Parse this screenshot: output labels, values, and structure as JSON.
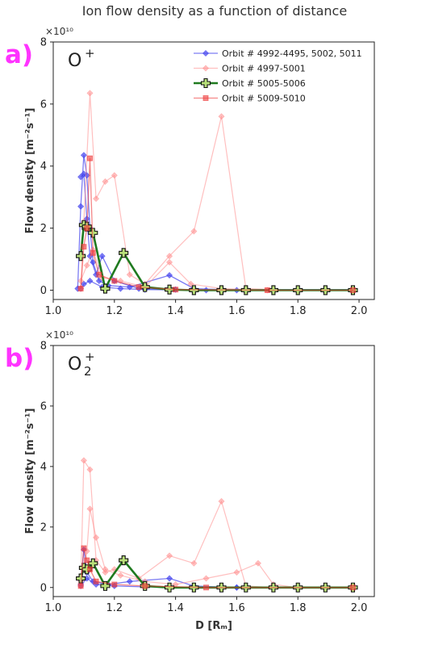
{
  "title": "Ion flow density as a function of distance",
  "chart_data": [
    {
      "type": "line",
      "panel_label": "a)",
      "ion_label": "O",
      "ion_sup": "+",
      "ion_sub": "",
      "xlabel": "",
      "ylabel": "Flow density [m⁻²s⁻¹]",
      "ymult": "×10¹⁰",
      "xlim": [
        1.0,
        2.05
      ],
      "ylim": [
        -0.3,
        8
      ],
      "xticks": [
        1.0,
        1.2,
        1.4,
        1.6,
        1.8,
        2.0
      ],
      "xticklabels": [
        "1.0",
        "1.2",
        "1.4",
        "1.6",
        "1.8",
        "2.0"
      ],
      "yticks": [
        0,
        2,
        4,
        6,
        8
      ],
      "yticklabels": [
        "0",
        "2",
        "4",
        "6",
        "8"
      ],
      "legend_position": "top-right",
      "series": [
        {
          "name": "Orbit # 4992-4495, 5002, 5011",
          "color": "#4444ee",
          "opacity": 0.7,
          "marker": "diamond",
          "width": 1.3,
          "lines": [
            [
              [
                1.08,
                0.05
              ],
              [
                1.09,
                2.7
              ],
              [
                1.1,
                4.35
              ],
              [
                1.11,
                3.7
              ],
              [
                1.12,
                2.0
              ],
              [
                1.13,
                0.9
              ],
              [
                1.15,
                0.3
              ],
              [
                1.18,
                0.15
              ],
              [
                1.25,
                0.1
              ],
              [
                1.38,
                0.48
              ],
              [
                1.46,
                0.05
              ],
              [
                1.55,
                0.02
              ],
              [
                1.72,
                0.02
              ],
              [
                1.98,
                0.02
              ]
            ],
            [
              [
                1.09,
                3.65
              ],
              [
                1.1,
                3.75
              ],
              [
                1.11,
                2.3
              ],
              [
                1.12,
                1.1
              ],
              [
                1.14,
                0.5
              ],
              [
                1.16,
                1.1
              ],
              [
                1.2,
                0.3
              ],
              [
                1.28,
                0.05
              ],
              [
                1.4,
                0.02
              ],
              [
                1.6,
                0.0
              ],
              [
                1.98,
                0.0
              ]
            ],
            [
              [
                1.09,
                0.05
              ],
              [
                1.1,
                0.2
              ],
              [
                1.12,
                0.3
              ],
              [
                1.16,
                0.1
              ],
              [
                1.22,
                0.05
              ],
              [
                1.3,
                0.02
              ],
              [
                1.5,
                0.0
              ],
              [
                1.8,
                0.0
              ],
              [
                1.98,
                0.0
              ]
            ]
          ]
        },
        {
          "name": "Orbit # 4997-5001",
          "color": "#ff8a8a",
          "opacity": 0.55,
          "marker": "diamond",
          "width": 1.2,
          "lines": [
            [
              [
                1.09,
                0.05
              ],
              [
                1.1,
                2.2
              ],
              [
                1.12,
                6.35
              ],
              [
                1.14,
                2.95
              ],
              [
                1.17,
                3.5
              ],
              [
                1.2,
                3.7
              ],
              [
                1.25,
                0.5
              ],
              [
                1.3,
                0.2
              ],
              [
                1.38,
                1.1
              ],
              [
                1.46,
                1.9
              ],
              [
                1.55,
                5.6
              ],
              [
                1.63,
                0.05
              ],
              [
                1.72,
                0.02
              ],
              [
                1.8,
                0.0
              ],
              [
                1.98,
                0.0
              ]
            ],
            [
              [
                1.09,
                0.3
              ],
              [
                1.11,
                0.8
              ],
              [
                1.13,
                1.3
              ],
              [
                1.16,
                0.4
              ],
              [
                1.22,
                0.3
              ],
              [
                1.3,
                0.1
              ],
              [
                1.38,
                0.9
              ],
              [
                1.45,
                0.2
              ],
              [
                1.55,
                0.05
              ],
              [
                1.7,
                0.0
              ],
              [
                1.98,
                0.0
              ]
            ]
          ]
        },
        {
          "name": "Orbit # 5005-5006",
          "color": "#1f7a1f",
          "opacity": 1,
          "marker": "plus",
          "width": 2.6,
          "lines": [
            [
              [
                1.09,
                1.1
              ],
              [
                1.1,
                2.1
              ],
              [
                1.11,
                2.05
              ],
              [
                1.13,
                1.85
              ],
              [
                1.17,
                0.05
              ],
              [
                1.23,
                1.2
              ],
              [
                1.3,
                0.1
              ],
              [
                1.38,
                0.02
              ],
              [
                1.46,
                0.0
              ],
              [
                1.55,
                0.0
              ],
              [
                1.63,
                0.0
              ],
              [
                1.72,
                0.0
              ],
              [
                1.8,
                0.0
              ],
              [
                1.89,
                0.0
              ],
              [
                1.98,
                0.0
              ]
            ]
          ]
        },
        {
          "name": "Orbit # 5009-5010",
          "color": "#ee3b3b",
          "opacity": 0.6,
          "marker": "square",
          "width": 1.3,
          "lines": [
            [
              [
                1.09,
                0.05
              ],
              [
                1.1,
                1.4
              ],
              [
                1.11,
                2.0
              ],
              [
                1.12,
                4.25
              ],
              [
                1.13,
                1.2
              ],
              [
                1.15,
                0.5
              ],
              [
                1.2,
                0.3
              ],
              [
                1.28,
                0.1
              ],
              [
                1.4,
                0.02
              ],
              [
                1.7,
                0.0
              ],
              [
                1.98,
                0.0
              ]
            ]
          ]
        }
      ]
    },
    {
      "type": "line",
      "panel_label": "b)",
      "ion_label": "O",
      "ion_sup": "+",
      "ion_sub": "2",
      "xlabel": "D [Rₘ]",
      "ylabel": "Flow density [m⁻²s⁻¹]",
      "ymult": "×10¹⁰",
      "xlim": [
        1.0,
        2.05
      ],
      "ylim": [
        -0.3,
        8
      ],
      "xticks": [
        1.0,
        1.2,
        1.4,
        1.6,
        1.8,
        2.0
      ],
      "xticklabels": [
        "1.0",
        "1.2",
        "1.4",
        "1.6",
        "1.8",
        "2.0"
      ],
      "yticks": [
        0,
        2,
        4,
        6,
        8
      ],
      "yticklabels": [
        "0",
        "2",
        "4",
        "6",
        "8"
      ],
      "series": [
        {
          "name": "Orbit # 4992-4495, 5002, 5011",
          "color": "#4444ee",
          "opacity": 0.7,
          "marker": "diamond",
          "width": 1.3,
          "lines": [
            [
              [
                1.09,
                0.1
              ],
              [
                1.1,
                1.25
              ],
              [
                1.11,
                0.5
              ],
              [
                1.13,
                0.2
              ],
              [
                1.18,
                0.1
              ],
              [
                1.25,
                0.2
              ],
              [
                1.38,
                0.3
              ],
              [
                1.46,
                0.05
              ],
              [
                1.6,
                0.0
              ],
              [
                1.98,
                0.0
              ]
            ],
            [
              [
                1.09,
                0.05
              ],
              [
                1.11,
                0.3
              ],
              [
                1.14,
                0.1
              ],
              [
                1.2,
                0.05
              ],
              [
                1.3,
                0.02
              ],
              [
                1.6,
                0.0
              ],
              [
                1.98,
                0.0
              ]
            ]
          ]
        },
        {
          "name": "Orbit # 4997-5001",
          "color": "#ff8a8a",
          "opacity": 0.55,
          "marker": "diamond",
          "width": 1.2,
          "lines": [
            [
              [
                1.09,
                0.05
              ],
              [
                1.1,
                4.2
              ],
              [
                1.12,
                3.9
              ],
              [
                1.14,
                0.9
              ],
              [
                1.17,
                0.5
              ],
              [
                1.2,
                0.6
              ],
              [
                1.28,
                0.3
              ],
              [
                1.38,
                1.05
              ],
              [
                1.46,
                0.8
              ],
              [
                1.55,
                2.85
              ],
              [
                1.63,
                0.05
              ],
              [
                1.72,
                0.0
              ],
              [
                1.98,
                0.0
              ]
            ],
            [
              [
                1.09,
                0.2
              ],
              [
                1.11,
                1.2
              ],
              [
                1.12,
                2.6
              ],
              [
                1.14,
                1.65
              ],
              [
                1.17,
                0.6
              ],
              [
                1.22,
                0.4
              ],
              [
                1.3,
                0.2
              ],
              [
                1.4,
                0.1
              ],
              [
                1.5,
                0.3
              ],
              [
                1.6,
                0.5
              ],
              [
                1.67,
                0.8
              ],
              [
                1.72,
                0.1
              ],
              [
                1.8,
                0.0
              ],
              [
                1.98,
                0.0
              ]
            ]
          ]
        },
        {
          "name": "Orbit # 5005-5006",
          "color": "#1f7a1f",
          "opacity": 1,
          "marker": "plus",
          "width": 2.6,
          "lines": [
            [
              [
                1.09,
                0.3
              ],
              [
                1.1,
                0.65
              ],
              [
                1.11,
                0.6
              ],
              [
                1.13,
                0.8
              ],
              [
                1.17,
                0.05
              ],
              [
                1.23,
                0.9
              ],
              [
                1.3,
                0.05
              ],
              [
                1.38,
                0.0
              ],
              [
                1.46,
                0.0
              ],
              [
                1.55,
                0.0
              ],
              [
                1.63,
                0.0
              ],
              [
                1.72,
                0.0
              ],
              [
                1.8,
                0.0
              ],
              [
                1.89,
                0.0
              ],
              [
                1.98,
                0.0
              ]
            ]
          ]
        },
        {
          "name": "Orbit # 5009-5010",
          "color": "#ee3b3b",
          "opacity": 0.6,
          "marker": "square",
          "width": 1.3,
          "lines": [
            [
              [
                1.09,
                0.05
              ],
              [
                1.1,
                1.3
              ],
              [
                1.11,
                0.9
              ],
              [
                1.12,
                0.6
              ],
              [
                1.14,
                0.2
              ],
              [
                1.2,
                0.1
              ],
              [
                1.3,
                0.05
              ],
              [
                1.5,
                0.0
              ],
              [
                1.98,
                0.0
              ]
            ]
          ]
        }
      ]
    }
  ]
}
